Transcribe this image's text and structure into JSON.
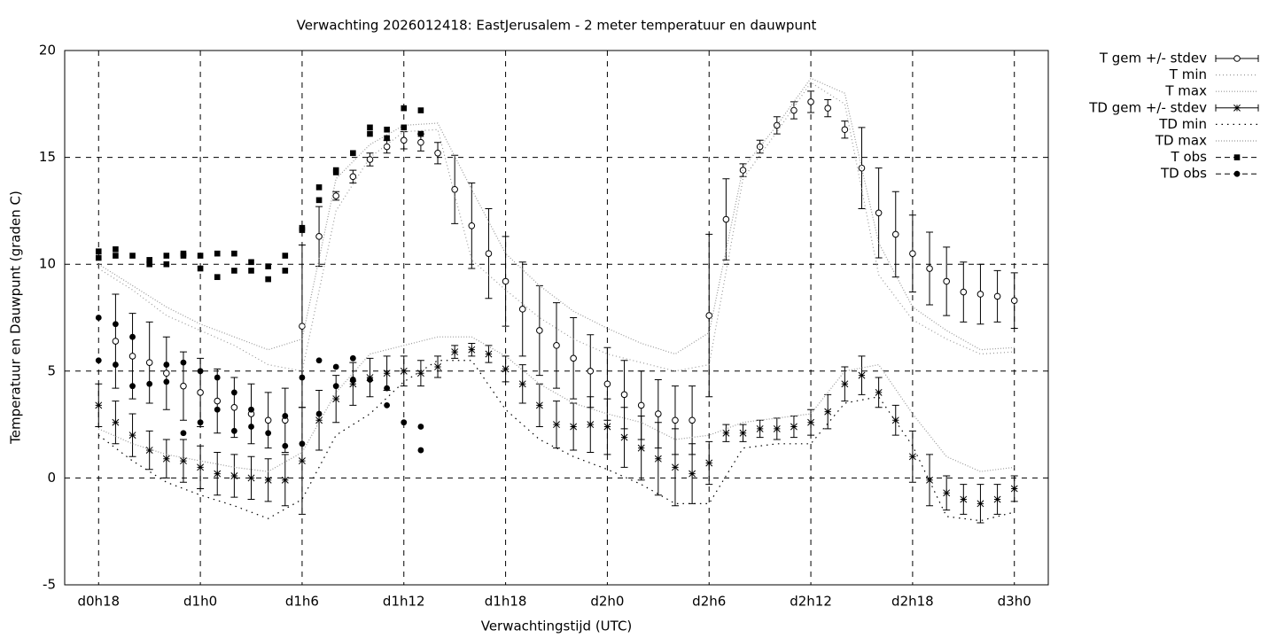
{
  "chart_data": {
    "type": "errorbar",
    "title": "Verwachting 2026012418: EastJerusalem - 2 meter temperatuur en dauwpunt",
    "x_label": "Verwachtingstijd (UTC)",
    "y_label": "Temperatuur en Dauwpunt (graden C)",
    "xlim": [
      16,
      74
    ],
    "ylim": [
      -5,
      20
    ],
    "xticks": [
      {
        "value": 18,
        "label": "d0h18"
      },
      {
        "value": 24,
        "label": "d1h0"
      },
      {
        "value": 30,
        "label": "d1h6"
      },
      {
        "value": 36,
        "label": "d1h12"
      },
      {
        "value": 42,
        "label": "d1h18"
      },
      {
        "value": 48,
        "label": "d2h0"
      },
      {
        "value": 54,
        "label": "d2h6"
      },
      {
        "value": 60,
        "label": "d2h12"
      },
      {
        "value": 66,
        "label": "d2h18"
      },
      {
        "value": 72,
        "label": "d3h0"
      }
    ],
    "yticks": [
      -5,
      0,
      5,
      10,
      15,
      20
    ],
    "grid": true,
    "legend": "outside-right",
    "series": [
      {
        "name": "T gem +/- stdev",
        "style": "errorbar",
        "marker": "circle",
        "color": "#000000",
        "x": [
          18,
          19,
          20,
          21,
          22,
          23,
          24,
          25,
          26,
          27,
          28,
          29,
          30,
          31,
          32,
          33,
          34,
          35,
          36,
          37,
          38,
          39,
          40,
          41,
          42,
          43,
          44,
          45,
          46,
          47,
          48,
          49,
          50,
          51,
          52,
          53,
          54,
          55,
          56,
          57,
          58,
          59,
          60,
          61,
          62,
          63,
          64,
          65,
          66,
          67,
          68,
          69,
          70,
          71,
          72
        ],
        "values": [
          null,
          6.4,
          5.7,
          5.4,
          4.9,
          4.3,
          4.0,
          3.6,
          3.3,
          3.0,
          2.7,
          2.7,
          7.1,
          11.3,
          13.2,
          14.1,
          14.9,
          15.5,
          15.8,
          15.7,
          15.2,
          13.5,
          11.8,
          10.5,
          9.2,
          7.9,
          6.9,
          6.2,
          5.6,
          5.0,
          4.4,
          3.9,
          3.4,
          3.0,
          2.7,
          2.7,
          7.6,
          12.1,
          14.4,
          15.5,
          16.5,
          17.2,
          17.6,
          17.3,
          16.3,
          14.5,
          12.4,
          11.4,
          10.5,
          9.8,
          9.2,
          8.7,
          8.6,
          8.5,
          8.3
        ],
        "errors": [
          null,
          2.2,
          2.0,
          1.9,
          1.7,
          1.6,
          1.6,
          1.5,
          1.4,
          1.4,
          1.3,
          1.5,
          3.8,
          1.4,
          0.2,
          0.3,
          0.3,
          0.3,
          0.4,
          0.4,
          0.5,
          1.6,
          2.0,
          2.1,
          2.1,
          2.2,
          2.1,
          2.0,
          1.9,
          1.7,
          1.7,
          1.6,
          1.6,
          1.6,
          1.6,
          1.6,
          3.8,
          1.9,
          0.3,
          0.3,
          0.4,
          0.4,
          0.5,
          0.4,
          0.4,
          1.9,
          2.1,
          2.0,
          1.8,
          1.7,
          1.6,
          1.4,
          1.4,
          1.2,
          1.3
        ]
      },
      {
        "name": "T min",
        "style": "line",
        "dash": "1 3",
        "color": "#999999",
        "x": [
          18,
          20,
          22,
          24,
          26,
          28,
          30,
          32,
          34,
          36,
          38,
          40,
          42,
          44,
          46,
          48,
          50,
          52,
          54,
          56,
          58,
          60,
          62,
          64,
          66,
          68,
          70,
          72
        ],
        "values": [
          9.8,
          8.8,
          7.6,
          6.9,
          6.2,
          5.3,
          5.0,
          12.5,
          15.0,
          16.2,
          16.3,
          10.2,
          8.8,
          7.5,
          6.5,
          5.8,
          5.4,
          5.0,
          5.3,
          14.0,
          16.2,
          18.5,
          17.5,
          9.5,
          7.4,
          6.5,
          5.8,
          5.9
        ]
      },
      {
        "name": "T max",
        "style": "line",
        "dash": "1 2",
        "color": "#999999",
        "x": [
          18,
          20,
          22,
          24,
          26,
          28,
          30,
          32,
          34,
          36,
          38,
          40,
          42,
          44,
          46,
          48,
          50,
          52,
          54,
          56,
          58,
          60,
          62,
          64,
          66,
          68,
          70,
          72
        ],
        "values": [
          10.0,
          9.0,
          8.0,
          7.2,
          6.6,
          6.0,
          6.5,
          14.0,
          15.6,
          16.5,
          16.6,
          13.5,
          10.5,
          9.0,
          7.8,
          7.0,
          6.3,
          5.8,
          6.8,
          14.5,
          16.5,
          18.7,
          18.0,
          11.0,
          8.0,
          6.9,
          6.0,
          6.1
        ]
      },
      {
        "name": "TD gem +/- stdev",
        "style": "errorbar",
        "marker": "star",
        "color": "#000000",
        "x": [
          18,
          19,
          20,
          21,
          22,
          23,
          24,
          25,
          26,
          27,
          28,
          29,
          30,
          31,
          32,
          33,
          34,
          35,
          36,
          37,
          38,
          39,
          40,
          41,
          42,
          43,
          44,
          45,
          46,
          47,
          48,
          49,
          50,
          51,
          52,
          53,
          54,
          55,
          56,
          57,
          58,
          59,
          60,
          61,
          62,
          63,
          64,
          65,
          66,
          67,
          68,
          69,
          70,
          71,
          72
        ],
        "values": [
          3.4,
          2.6,
          2.0,
          1.3,
          0.9,
          0.8,
          0.5,
          0.2,
          0.1,
          0.0,
          -0.1,
          -0.1,
          0.8,
          2.7,
          3.7,
          4.4,
          4.7,
          4.9,
          5.0,
          4.9,
          5.2,
          5.9,
          6.0,
          5.8,
          5.1,
          4.4,
          3.4,
          2.5,
          2.4,
          2.5,
          2.4,
          1.9,
          1.4,
          0.9,
          0.5,
          0.2,
          0.7,
          2.1,
          2.1,
          2.3,
          2.3,
          2.4,
          2.6,
          3.1,
          4.4,
          4.8,
          4.0,
          2.7,
          1.0,
          -0.1,
          -0.7,
          -1.0,
          -1.2,
          -1.0,
          -0.5
        ],
        "errors": [
          1.0,
          1.0,
          1.0,
          0.9,
          0.9,
          1.0,
          1.0,
          1.0,
          1.0,
          1.0,
          1.0,
          1.2,
          2.5,
          1.4,
          1.1,
          1.0,
          0.9,
          0.8,
          0.7,
          0.6,
          0.5,
          0.3,
          0.3,
          0.4,
          0.6,
          0.9,
          1.0,
          1.1,
          1.1,
          1.3,
          1.3,
          1.4,
          1.5,
          1.7,
          1.8,
          1.4,
          1.0,
          0.4,
          0.4,
          0.4,
          0.5,
          0.5,
          0.6,
          0.8,
          0.8,
          0.9,
          0.7,
          0.7,
          1.2,
          1.2,
          0.8,
          0.7,
          0.9,
          0.7,
          0.6
        ]
      },
      {
        "name": "TD min",
        "style": "line",
        "dash": "1.5 5",
        "color": "#000000",
        "x": [
          18,
          20,
          22,
          24,
          26,
          28,
          30,
          32,
          34,
          36,
          38,
          40,
          42,
          44,
          46,
          48,
          50,
          52,
          54,
          56,
          58,
          60,
          62,
          64,
          66,
          68,
          70,
          72
        ],
        "values": [
          2.0,
          0.8,
          -0.2,
          -0.8,
          -1.3,
          -1.9,
          -1.0,
          2.0,
          3.0,
          4.5,
          5.5,
          5.5,
          3.2,
          1.8,
          1.0,
          0.4,
          -0.3,
          -1.2,
          -1.2,
          1.4,
          1.6,
          1.6,
          3.5,
          3.8,
          1.5,
          -1.8,
          -2.0,
          -1.6
        ]
      },
      {
        "name": "TD max",
        "style": "line",
        "dash": "1 2",
        "color": "#999999",
        "x": [
          18,
          20,
          22,
          24,
          26,
          28,
          30,
          32,
          34,
          36,
          38,
          40,
          42,
          44,
          46,
          48,
          50,
          52,
          54,
          56,
          58,
          60,
          62,
          64,
          66,
          68,
          70,
          72
        ],
        "values": [
          2.3,
          1.6,
          1.1,
          0.8,
          0.5,
          0.3,
          1.2,
          4.0,
          5.8,
          6.2,
          6.6,
          6.6,
          5.7,
          4.4,
          3.5,
          3.0,
          2.6,
          1.8,
          2.0,
          2.6,
          2.8,
          3.0,
          5.0,
          5.3,
          3.0,
          1.0,
          0.3,
          0.5
        ]
      },
      {
        "name": "T obs",
        "style": "points",
        "marker": "square",
        "color": "#000000",
        "x": [
          18,
          18,
          19,
          19,
          20,
          21,
          21,
          22,
          22,
          23,
          23,
          24,
          24,
          25,
          25,
          26,
          26,
          27,
          27,
          28,
          28,
          29,
          29,
          30,
          30,
          31,
          31,
          32,
          32,
          33,
          34,
          34,
          35,
          35,
          36,
          36,
          37,
          37
        ],
        "values": [
          10.6,
          10.3,
          10.7,
          10.4,
          10.4,
          10.2,
          10.0,
          10.4,
          10.0,
          10.5,
          10.4,
          10.4,
          9.8,
          10.5,
          9.4,
          10.5,
          9.7,
          10.1,
          9.7,
          9.9,
          9.3,
          10.4,
          9.7,
          11.7,
          11.6,
          13.6,
          13.0,
          14.4,
          14.3,
          15.2,
          16.4,
          16.1,
          16.3,
          15.9,
          17.3,
          16.4,
          17.2,
          16.1
        ]
      },
      {
        "name": "TD obs",
        "style": "points",
        "marker": "dot",
        "color": "#000000",
        "x": [
          18,
          18,
          19,
          19,
          20,
          20,
          21,
          22,
          22,
          23,
          23,
          24,
          24,
          25,
          25,
          26,
          26,
          27,
          27,
          28,
          29,
          29,
          30,
          30,
          31,
          31,
          32,
          32,
          33,
          33,
          34,
          35,
          35,
          36,
          37,
          37
        ],
        "values": [
          7.5,
          5.5,
          7.2,
          5.3,
          6.6,
          4.3,
          4.4,
          5.3,
          4.5,
          5.4,
          2.1,
          5.0,
          2.6,
          4.7,
          3.2,
          4.0,
          2.2,
          3.2,
          2.4,
          2.1,
          2.9,
          1.5,
          4.7,
          1.6,
          5.5,
          3.0,
          5.2,
          4.3,
          5.6,
          4.6,
          4.6,
          4.2,
          3.4,
          2.6,
          2.4,
          1.3
        ]
      }
    ]
  }
}
